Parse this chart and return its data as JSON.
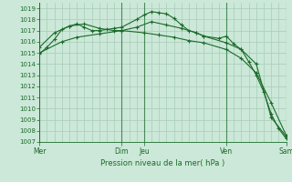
{
  "bg_color": "#cce8d8",
  "grid_color": "#a8ccb8",
  "line_color": "#1a6b2a",
  "xlabel": "Pression niveau de la mer( hPa )",
  "ylim": [
    1007,
    1019.5
  ],
  "yticks": [
    1007,
    1008,
    1009,
    1010,
    1011,
    1012,
    1013,
    1014,
    1015,
    1016,
    1017,
    1018,
    1019
  ],
  "day_positions": [
    0,
    11,
    14,
    25,
    33
  ],
  "day_labels": [
    "Mer",
    "Dim",
    "Jeu",
    "Ven",
    "Sam"
  ],
  "series1": {
    "x": [
      0,
      1,
      2,
      3,
      4,
      5,
      6,
      7,
      8,
      9,
      10,
      11,
      13,
      14,
      15,
      16,
      17,
      18,
      19,
      20,
      21,
      22,
      24,
      25,
      26,
      27,
      28,
      29,
      30,
      31,
      32,
      33
    ],
    "y": [
      1014.9,
      1015.5,
      1016.2,
      1017.1,
      1017.4,
      1017.6,
      1017.3,
      1017.0,
      1017.0,
      1017.1,
      1017.2,
      1017.3,
      1018.0,
      1018.4,
      1018.7,
      1018.6,
      1018.5,
      1018.1,
      1017.5,
      1017.0,
      1016.8,
      1016.5,
      1016.3,
      1016.5,
      1015.8,
      1015.3,
      1014.2,
      1013.0,
      1011.5,
      1009.5,
      1008.2,
      1007.3
    ]
  },
  "series2": {
    "x": [
      0,
      2,
      4,
      6,
      8,
      10,
      11,
      13,
      15,
      17,
      19,
      21,
      22,
      25,
      27,
      29,
      31,
      33
    ],
    "y": [
      1015.5,
      1016.8,
      1017.4,
      1017.6,
      1017.2,
      1017.0,
      1017.0,
      1017.3,
      1017.8,
      1017.5,
      1017.2,
      1016.8,
      1016.5,
      1015.9,
      1015.3,
      1014.0,
      1009.2,
      1007.5
    ]
  },
  "series3": {
    "x": [
      0,
      3,
      5,
      8,
      11,
      14,
      16,
      18,
      20,
      22,
      25,
      27,
      29,
      31,
      33
    ],
    "y": [
      1015.0,
      1016.0,
      1016.4,
      1016.7,
      1017.0,
      1016.8,
      1016.6,
      1016.4,
      1016.1,
      1015.9,
      1015.3,
      1014.5,
      1013.2,
      1010.5,
      1007.6
    ]
  },
  "vline_positions": [
    0,
    11,
    14,
    25,
    33
  ]
}
